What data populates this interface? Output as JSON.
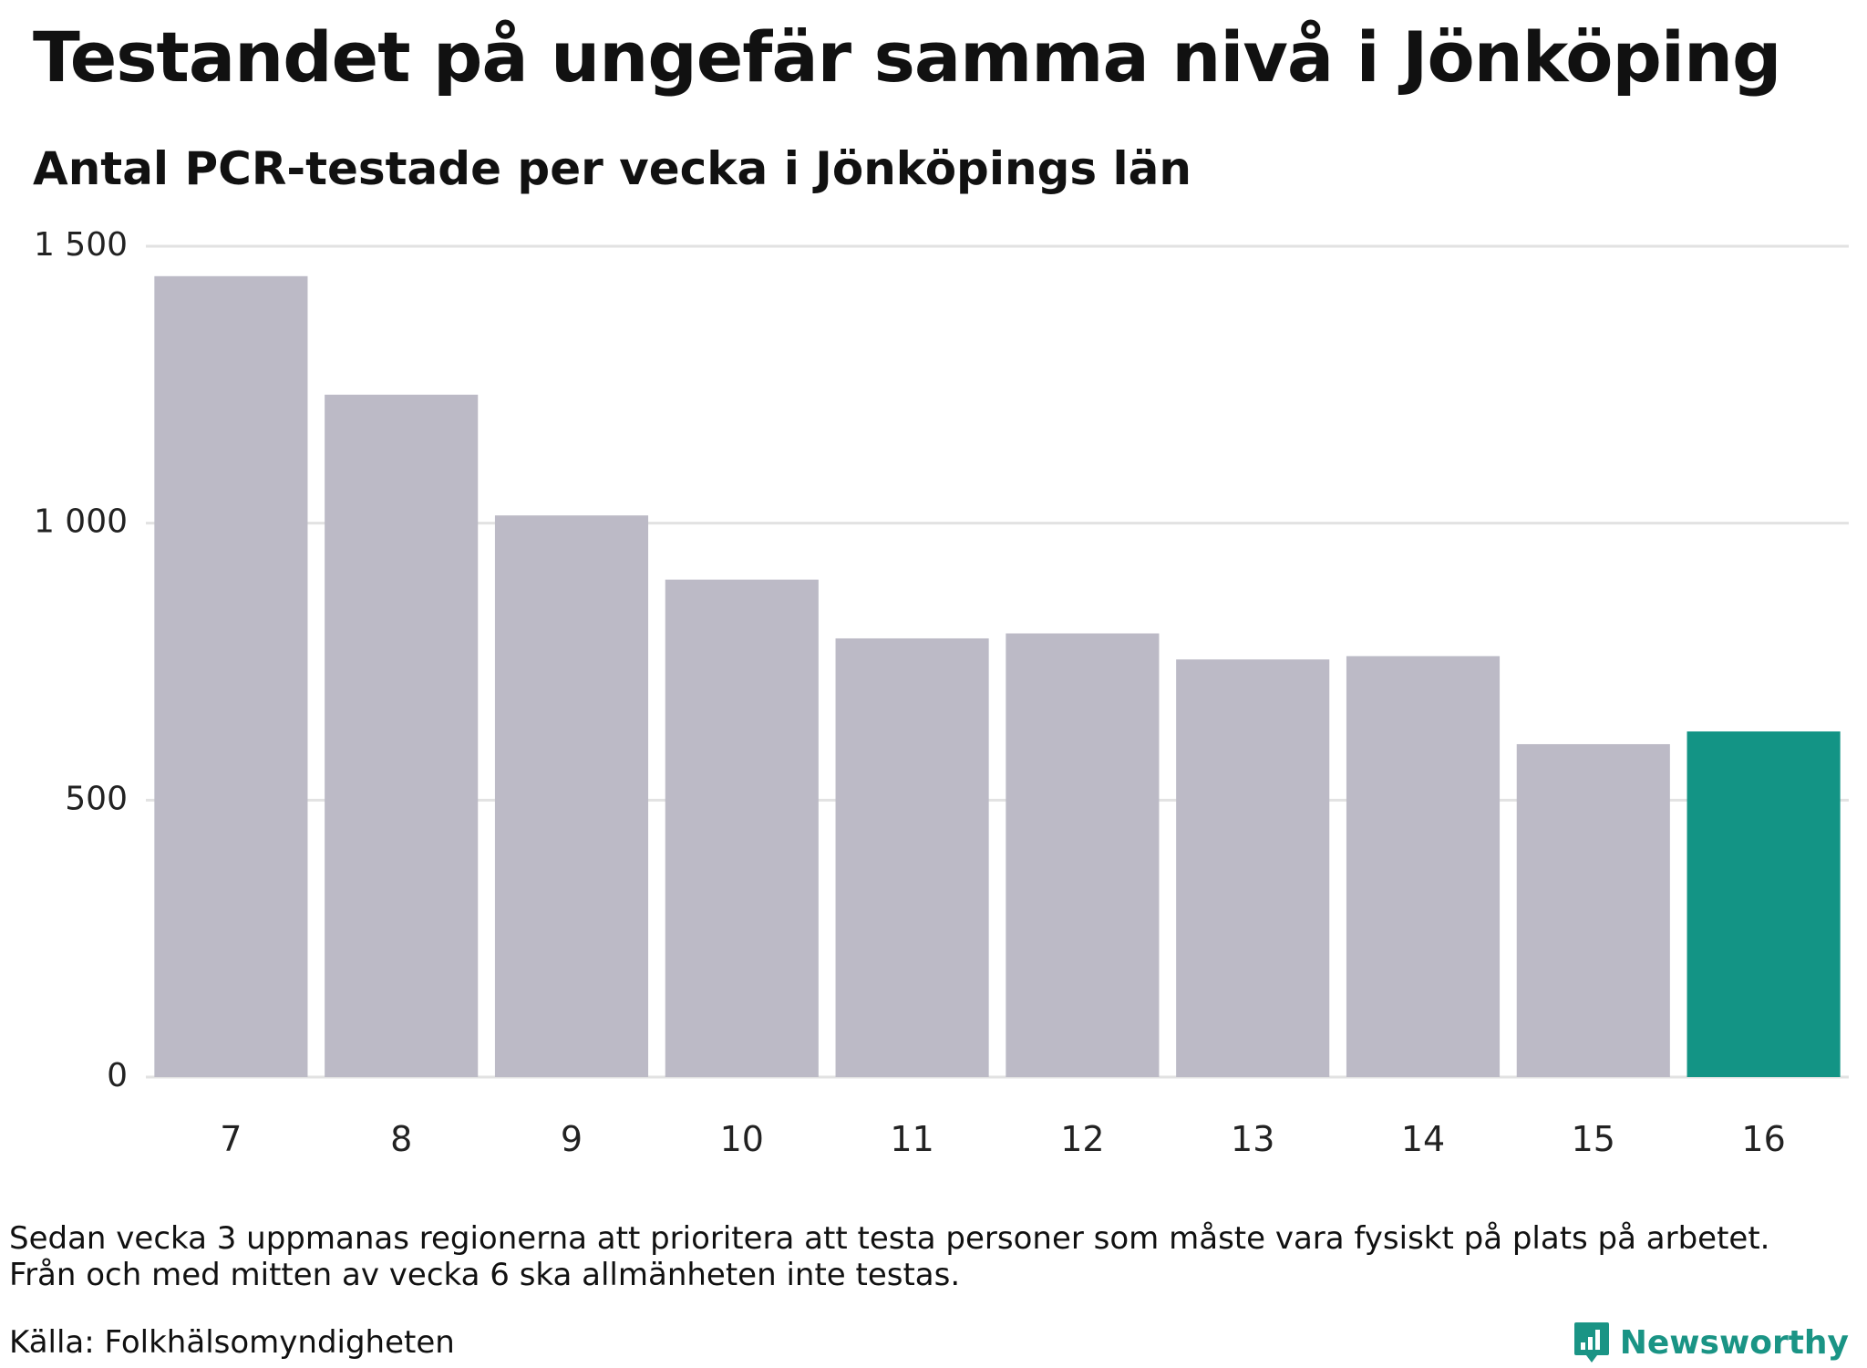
{
  "title": "Testandet på ungefär samma nivå i Jönköping",
  "subtitle": "Antal PCR-testade per vecka i Jönköpings län",
  "notes": [
    "Sedan vecka 3 uppmanas regionerna att prioritera att testa personer som måste vara fysiskt på plats på arbetet.",
    "Från och med mitten av vecka 6 ska allmänheten inte testas."
  ],
  "source": "Källa: Folkhälsomyndigheten",
  "brand": {
    "name": "Newsworthy",
    "icon": "newsworthy-logo-icon"
  },
  "colors": {
    "bar": "#bcbac6",
    "highlight": "#139485",
    "grid": "#e2e2e2",
    "axis_text": "#222222"
  },
  "chart_data": {
    "type": "bar",
    "title": "Testandet på ungefär samma nivå i Jönköping",
    "subtitle": "Antal PCR-testade per vecka i Jönköpings län",
    "xlabel": "",
    "ylabel": "",
    "categories": [
      "7",
      "8",
      "9",
      "10",
      "11",
      "12",
      "13",
      "14",
      "15",
      "16"
    ],
    "values": [
      1446,
      1232,
      1014,
      898,
      792,
      801,
      754,
      760,
      601,
      624
    ],
    "highlight_index": 9,
    "ylim": [
      0,
      1500
    ],
    "yticks": [
      0,
      500,
      1000,
      1500
    ],
    "ytick_labels": [
      "0",
      "500",
      "1 000",
      "1 500"
    ],
    "grid": true,
    "legend": "none"
  }
}
